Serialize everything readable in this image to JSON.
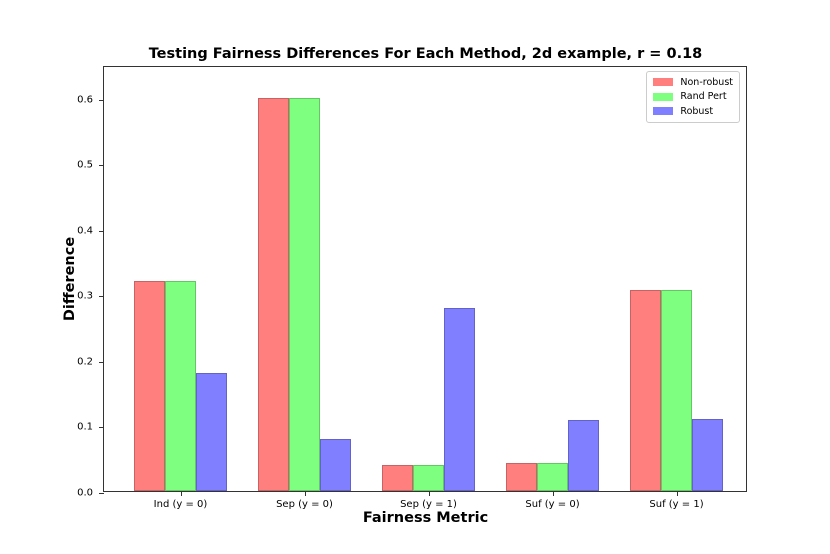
{
  "chart_data": {
    "type": "bar",
    "title": "Testing Fairness Differences For Each Method, 2d example, r = 0.18",
    "xlabel": "Fairness Metric",
    "ylabel": "Difference",
    "categories": [
      "Ind (y = 0)",
      "Sep (y = 0)",
      "Sep (y = 1)",
      "Suf (y = 0)",
      "Suf (y = 1)"
    ],
    "series": [
      {
        "name": "Non-robust",
        "color": "#ff7f7f",
        "values": [
          0.32,
          0.6,
          0.04,
          0.043,
          0.307
        ]
      },
      {
        "name": "Rand Pert",
        "color": "#7fff7f",
        "values": [
          0.32,
          0.6,
          0.04,
          0.043,
          0.307
        ]
      },
      {
        "name": "Robust",
        "color": "#7f7fff",
        "values": [
          0.18,
          0.08,
          0.28,
          0.108,
          0.11
        ]
      }
    ],
    "yticks": [
      "0.0",
      "0.1",
      "0.2",
      "0.3",
      "0.4",
      "0.5",
      "0.6"
    ],
    "ylim": [
      0,
      0.65
    ],
    "grid": false,
    "legend_position": "upper right"
  }
}
